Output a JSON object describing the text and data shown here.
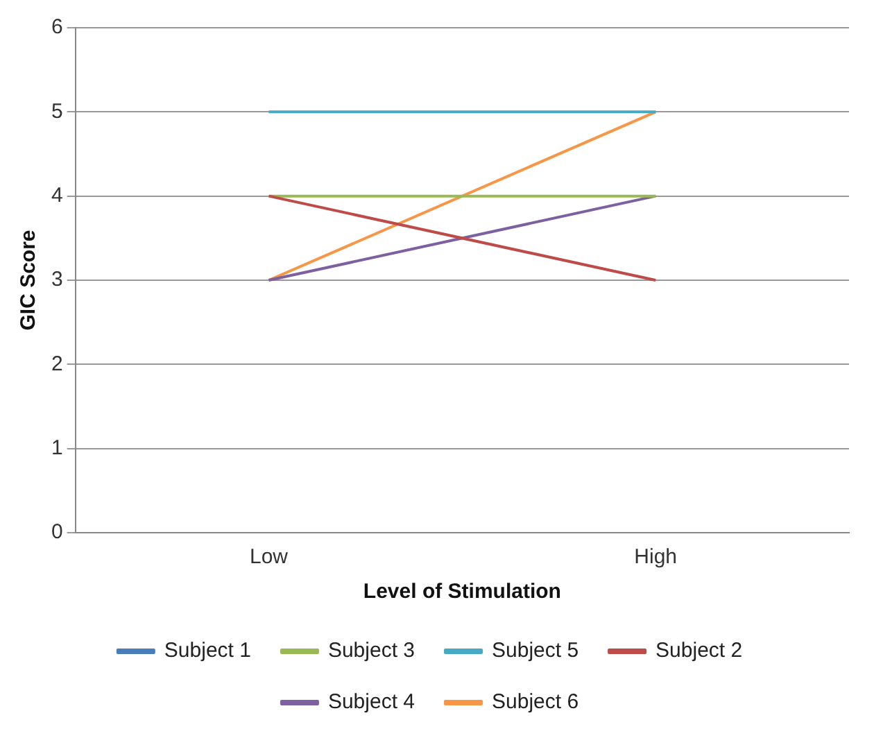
{
  "chart_data": {
    "type": "line",
    "xlabel": "Level of Stimulation",
    "ylabel": "GIC Score",
    "categories": [
      "Low",
      "High"
    ],
    "ylim": [
      0,
      6
    ],
    "yticks": [
      0,
      1,
      2,
      3,
      4,
      5,
      6
    ],
    "grid": "y",
    "legend": "bottom",
    "marker": "none",
    "line_style": "solid",
    "series": [
      {
        "name": "Subject 1",
        "color": "#4a7ebb",
        "values": [
          null,
          null
        ]
      },
      {
        "name": "Subject 2",
        "color": "#be4b48",
        "values": [
          4,
          3
        ]
      },
      {
        "name": "Subject 3",
        "color": "#98b954",
        "values": [
          4,
          4
        ]
      },
      {
        "name": "Subject 4",
        "color": "#7d60a0",
        "values": [
          3,
          4
        ]
      },
      {
        "name": "Subject 5",
        "color": "#46aac5",
        "values": [
          5,
          5
        ]
      },
      {
        "name": "Subject 6",
        "color": "#f79646",
        "values": [
          3,
          5
        ]
      }
    ]
  }
}
